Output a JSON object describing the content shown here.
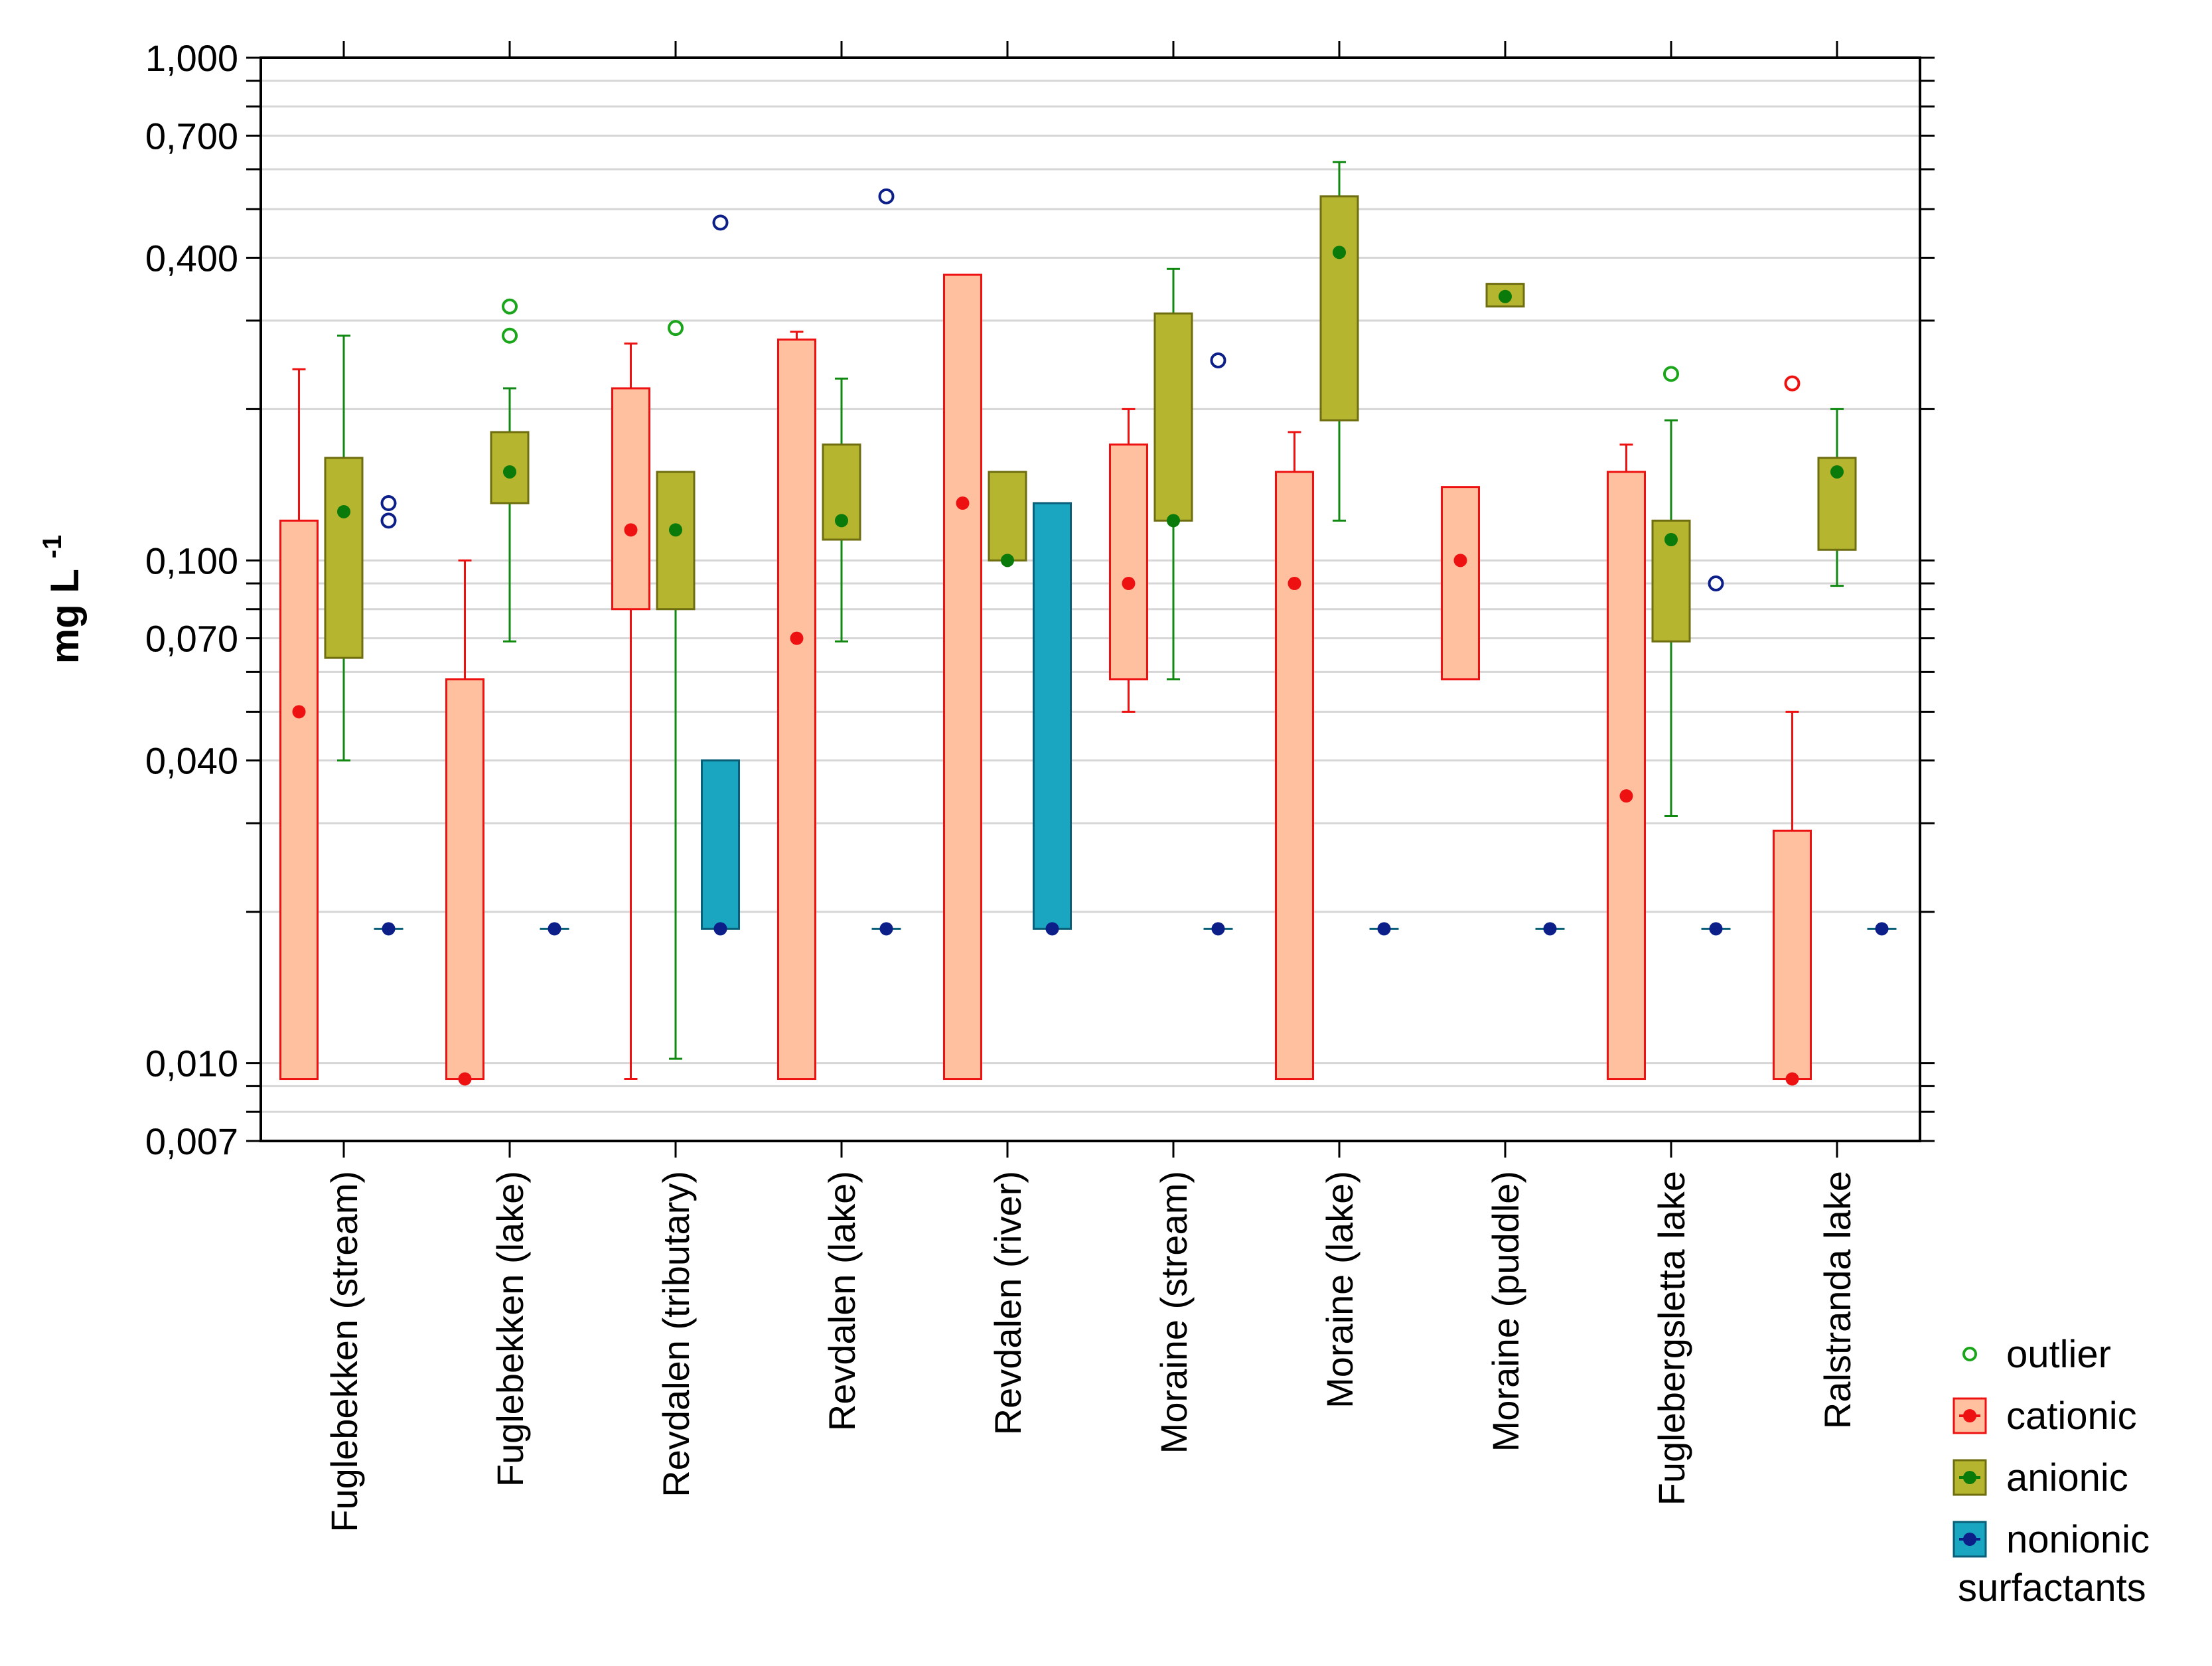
{
  "chart_data": {
    "type": "boxplot",
    "ylabel": "mg L",
    "ylabel_superscript": "-1",
    "yscale": "log",
    "ylim": [
      0.007,
      1.0
    ],
    "yticks": [
      {
        "value": 1.0,
        "label": "1,000"
      },
      {
        "value": 0.7,
        "label": "0,700"
      },
      {
        "value": 0.4,
        "label": "0,400"
      },
      {
        "value": 0.1,
        "label": "0,100"
      },
      {
        "value": 0.07,
        "label": "0,070"
      },
      {
        "value": 0.04,
        "label": "0,040"
      },
      {
        "value": 0.01,
        "label": "0,010"
      },
      {
        "value": 0.007,
        "label": "0,007"
      }
    ],
    "categories": [
      "Fuglebekken (stream)",
      "Fuglebekken (lake)",
      "Revdalen (tributary)",
      "Revdalen (lake)",
      "Revdalen (river)",
      "Moraine (stream)",
      "Moraine (lake)",
      "Moraine (puddle)",
      "Fuglebergsletta lake",
      "Ralstranda lake"
    ],
    "series": [
      {
        "name": "cationic",
        "box_fill": "#ffc0a0",
        "stroke": "#ee1111",
        "median_color": "#ee1111",
        "boxes": [
          {
            "q1": 0.0093,
            "q3": 0.12,
            "median": 0.05,
            "wlo": 0.0093,
            "whi": 0.24,
            "outliers": []
          },
          {
            "q1": 0.0093,
            "q3": 0.058,
            "median": 0.0093,
            "wlo": 0.0093,
            "whi": 0.1,
            "outliers": []
          },
          {
            "q1": 0.08,
            "q3": 0.22,
            "median": 0.115,
            "wlo": 0.0093,
            "whi": 0.27,
            "outliers": []
          },
          {
            "q1": 0.0093,
            "q3": 0.275,
            "median": 0.07,
            "wlo": 0.0093,
            "whi": 0.285,
            "outliers": []
          },
          {
            "q1": 0.0093,
            "q3": 0.37,
            "median": 0.13,
            "wlo": 0.0093,
            "whi": 0.37,
            "outliers": []
          },
          {
            "q1": 0.058,
            "q3": 0.17,
            "median": 0.09,
            "wlo": 0.05,
            "whi": 0.2,
            "outliers": []
          },
          {
            "q1": 0.0093,
            "q3": 0.15,
            "median": 0.09,
            "wlo": 0.0093,
            "whi": 0.18,
            "outliers": []
          },
          {
            "q1": 0.058,
            "q3": 0.14,
            "median": 0.1,
            "wlo": 0.058,
            "whi": 0.14,
            "outliers": []
          },
          {
            "q1": 0.0093,
            "q3": 0.15,
            "median": 0.034,
            "wlo": 0.0093,
            "whi": 0.17,
            "outliers": []
          },
          {
            "q1": 0.0093,
            "q3": 0.029,
            "median": 0.0093,
            "wlo": 0.0093,
            "whi": 0.05,
            "outliers": [
              0.225
            ]
          }
        ]
      },
      {
        "name": "anionic",
        "box_fill": "#b5b530",
        "stroke": "#6e6e10",
        "whisker_color": "#118811",
        "median_color": "#0a7a0a",
        "boxes": [
          {
            "q1": 0.064,
            "q3": 0.16,
            "median": 0.125,
            "wlo": 0.04,
            "whi": 0.28,
            "outliers": []
          },
          {
            "q1": 0.13,
            "q3": 0.18,
            "median": 0.15,
            "wlo": 0.069,
            "whi": 0.22,
            "outliers": [
              0.32,
              0.28
            ]
          },
          {
            "q1": 0.08,
            "q3": 0.15,
            "median": 0.115,
            "wlo": 0.0102,
            "whi": 0.08,
            "outliers": [
              0.29
            ]
          },
          {
            "q1": 0.11,
            "q3": 0.17,
            "median": 0.12,
            "wlo": 0.069,
            "whi": 0.23,
            "outliers": []
          },
          {
            "q1": 0.1,
            "q3": 0.15,
            "median": 0.1,
            "wlo": 0.1,
            "whi": 0.15,
            "outliers": []
          },
          {
            "q1": 0.12,
            "q3": 0.31,
            "median": 0.12,
            "wlo": 0.058,
            "whi": 0.38,
            "outliers": []
          },
          {
            "q1": 0.19,
            "q3": 0.53,
            "median": 0.41,
            "wlo": 0.12,
            "whi": 0.62,
            "outliers": []
          },
          {
            "q1": 0.32,
            "q3": 0.355,
            "median": 0.335,
            "wlo": 0.32,
            "whi": 0.355,
            "outliers": []
          },
          {
            "q1": 0.069,
            "q3": 0.12,
            "median": 0.11,
            "wlo": 0.031,
            "whi": 0.19,
            "outliers": [
              0.235
            ]
          },
          {
            "q1": 0.105,
            "q3": 0.16,
            "median": 0.15,
            "wlo": 0.089,
            "whi": 0.2,
            "outliers": []
          }
        ]
      },
      {
        "name": "nonionic",
        "box_fill": "#1aa5c0",
        "stroke": "#0a5f78",
        "median_color": "#0c1e88",
        "boxes": [
          {
            "q1": 0.0185,
            "q3": 0.0185,
            "median": 0.0185,
            "outliers": [
              0.13,
              0.12
            ]
          },
          {
            "q1": 0.0185,
            "q3": 0.0185,
            "median": 0.0185,
            "outliers": []
          },
          {
            "q1": 0.0185,
            "q3": 0.04,
            "median": 0.0185,
            "outliers": [
              0.47
            ]
          },
          {
            "q1": 0.0185,
            "q3": 0.0185,
            "median": 0.0185,
            "outliers": [
              0.53
            ]
          },
          {
            "q1": 0.0185,
            "q3": 0.13,
            "median": 0.0185,
            "outliers": []
          },
          {
            "q1": 0.0185,
            "q3": 0.0185,
            "median": 0.0185,
            "outliers": [
              0.25
            ]
          },
          {
            "q1": 0.0185,
            "q3": 0.0185,
            "median": 0.0185,
            "outliers": []
          },
          {
            "q1": 0.0185,
            "q3": 0.0185,
            "median": 0.0185,
            "outliers": []
          },
          {
            "q1": 0.0185,
            "q3": 0.0185,
            "median": 0.0185,
            "outliers": [
              0.09
            ]
          },
          {
            "q1": 0.0185,
            "q3": 0.0185,
            "median": 0.0185,
            "outliers": []
          }
        ]
      }
    ],
    "legend": {
      "position": "bottom-right",
      "items": [
        {
          "key": "outlier",
          "label": "outlier",
          "color": "#1aa51a"
        },
        {
          "key": "cationic",
          "label": "cationic",
          "fill": "#ffc0a0",
          "stroke": "#ee1111",
          "dot": "#ee1111"
        },
        {
          "key": "anionic",
          "label": "anionic",
          "fill": "#b5b530",
          "stroke": "#6e6e10",
          "dot": "#0a7a0a"
        },
        {
          "key": "nonionic",
          "label": "nonionic",
          "fill": "#1aa5c0",
          "stroke": "#0a5f78",
          "dot": "#0c1e88"
        }
      ],
      "footer": "surfactants"
    },
    "grid": true
  }
}
